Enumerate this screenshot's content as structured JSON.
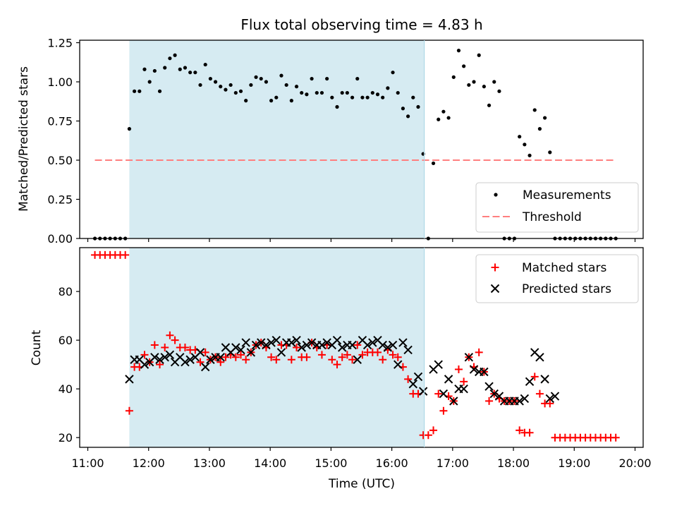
{
  "figure_title": "Flux total observing time = 4.83 h",
  "colors": {
    "observing_window": "#add8e6",
    "measurements": "#000000",
    "threshold": "#ff7f7f",
    "matched": "#ff0000",
    "predicted": "#000000"
  },
  "chart_data": [
    {
      "type": "scatter",
      "panel": "top",
      "title": "Flux total observing time = 4.83 h",
      "ylabel": "Matched/Predicted stars",
      "xlabel": "",
      "xlim": [
        "11:00",
        "20:00"
      ],
      "ylim": [
        0,
        1.25
      ],
      "yticks": [
        "0.00",
        "0.25",
        "0.50",
        "0.75",
        "1.00",
        "1.25"
      ],
      "legend_position": "lower-right",
      "shaded_span": {
        "start": "11:41",
        "end": "16:32"
      },
      "series": [
        {
          "name": "Measurements",
          "style": "dot",
          "x": [
            "11:07",
            "11:12",
            "11:17",
            "11:22",
            "11:27",
            "11:32",
            "11:37",
            "11:41",
            "11:46",
            "11:51",
            "11:56",
            "12:01",
            "12:06",
            "12:11",
            "12:16",
            "12:21",
            "12:26",
            "12:31",
            "12:36",
            "12:41",
            "12:46",
            "12:51",
            "12:56",
            "13:01",
            "13:06",
            "13:11",
            "13:16",
            "13:21",
            "13:26",
            "13:31",
            "13:36",
            "13:41",
            "13:46",
            "13:51",
            "13:56",
            "14:01",
            "14:06",
            "14:11",
            "14:16",
            "14:21",
            "14:26",
            "14:31",
            "14:36",
            "14:41",
            "14:46",
            "14:51",
            "14:56",
            "15:01",
            "15:06",
            "15:11",
            "15:16",
            "15:21",
            "15:26",
            "15:31",
            "15:36",
            "15:41",
            "15:46",
            "15:51",
            "15:56",
            "16:01",
            "16:06",
            "16:11",
            "16:16",
            "16:21",
            "16:26",
            "16:31",
            "16:36",
            "16:41",
            "16:46",
            "16:51",
            "16:56",
            "17:01",
            "17:06",
            "17:11",
            "17:16",
            "17:21",
            "17:26",
            "17:31",
            "17:36",
            "17:41",
            "17:46",
            "17:51",
            "17:56",
            "18:01",
            "18:06",
            "18:11",
            "18:16",
            "18:21",
            "18:26",
            "18:31",
            "18:36",
            "18:41",
            "18:46",
            "18:51",
            "18:56",
            "19:01",
            "19:06",
            "19:11",
            "19:16",
            "19:21",
            "19:26",
            "19:31",
            "19:36",
            "19:41"
          ],
          "y": [
            0,
            0,
            0,
            0,
            0,
            0,
            0,
            0.7,
            0.94,
            0.94,
            1.08,
            1.0,
            1.07,
            0.94,
            1.09,
            1.15,
            1.17,
            1.08,
            1.09,
            1.06,
            1.06,
            0.98,
            1.11,
            1.02,
            1.0,
            0.97,
            0.95,
            0.98,
            0.93,
            0.94,
            0.88,
            0.98,
            1.03,
            1.02,
            1.0,
            0.88,
            0.9,
            1.04,
            0.98,
            0.88,
            0.97,
            0.93,
            0.92,
            1.02,
            0.93,
            0.93,
            1.02,
            0.9,
            0.84,
            0.93,
            0.93,
            0.9,
            1.02,
            0.9,
            0.9,
            0.93,
            0.92,
            0.9,
            0.96,
            1.06,
            0.93,
            0.83,
            0.78,
            0.9,
            0.84,
            0.54,
            0.0,
            0.48,
            0.76,
            0.81,
            0.77,
            1.03,
            1.2,
            1.1,
            0.98,
            1.0,
            1.17,
            0.97,
            0.85,
            1.0,
            0.94,
            0,
            0,
            0,
            0.65,
            0.6,
            0.53,
            0.82,
            0.7,
            0.77,
            0.55,
            0,
            0,
            0,
            0,
            0,
            0,
            0,
            0,
            0,
            0,
            0,
            0,
            0
          ]
        },
        {
          "name": "Threshold",
          "style": "dashed-line",
          "x": [
            "11:07",
            "19:41"
          ],
          "y": [
            0.5,
            0.5
          ]
        }
      ]
    },
    {
      "type": "scatter",
      "panel": "bottom",
      "xlabel": "Time (UTC)",
      "ylabel": "Count",
      "xlim": [
        "11:00",
        "20:00"
      ],
      "ylim": [
        16,
        98
      ],
      "xticks": [
        "11:00",
        "12:00",
        "13:00",
        "14:00",
        "15:00",
        "16:00",
        "17:00",
        "18:00",
        "19:00",
        "20:00"
      ],
      "yticks": [
        "20",
        "40",
        "60",
        "80"
      ],
      "legend_position": "upper-right",
      "shaded_span": {
        "start": "11:41",
        "end": "16:32"
      },
      "series": [
        {
          "name": "Matched stars",
          "marker": "plus",
          "x": [
            "11:07",
            "11:12",
            "11:17",
            "11:22",
            "11:27",
            "11:32",
            "11:37",
            "11:41",
            "11:46",
            "11:51",
            "11:56",
            "12:01",
            "12:06",
            "12:11",
            "12:16",
            "12:21",
            "12:26",
            "12:31",
            "12:36",
            "12:41",
            "12:46",
            "12:51",
            "12:56",
            "13:01",
            "13:06",
            "13:11",
            "13:16",
            "13:21",
            "13:26",
            "13:31",
            "13:36",
            "13:41",
            "13:46",
            "13:51",
            "13:56",
            "14:01",
            "14:06",
            "14:11",
            "14:16",
            "14:21",
            "14:26",
            "14:31",
            "14:36",
            "14:41",
            "14:46",
            "14:51",
            "14:56",
            "15:01",
            "15:06",
            "15:11",
            "15:16",
            "15:21",
            "15:26",
            "15:31",
            "15:36",
            "15:41",
            "15:46",
            "15:51",
            "15:56",
            "16:01",
            "16:06",
            "16:11",
            "16:16",
            "16:21",
            "16:26",
            "16:31",
            "16:36",
            "16:41",
            "16:46",
            "16:51",
            "16:56",
            "17:01",
            "17:06",
            "17:11",
            "17:16",
            "17:21",
            "17:26",
            "17:31",
            "17:36",
            "17:41",
            "17:46",
            "17:51",
            "17:56",
            "18:01",
            "18:06",
            "18:11",
            "18:16",
            "18:21",
            "18:26",
            "18:31",
            "18:36",
            "18:41",
            "18:46",
            "18:51",
            "18:56",
            "19:01",
            "19:06",
            "19:11",
            "19:16",
            "19:21",
            "19:26",
            "19:31",
            "19:36",
            "19:41"
          ],
          "y": [
            95,
            95,
            95,
            95,
            95,
            95,
            95,
            31,
            49,
            49,
            54,
            51,
            58,
            50,
            57,
            62,
            60,
            57,
            57,
            56,
            56,
            51,
            55,
            52,
            53,
            51,
            53,
            54,
            53,
            54,
            52,
            55,
            58,
            59,
            57,
            53,
            52,
            58,
            58,
            52,
            57,
            53,
            53,
            59,
            57,
            54,
            58,
            52,
            50,
            53,
            54,
            52,
            58,
            54,
            55,
            55,
            55,
            52,
            56,
            54,
            53,
            49,
            44,
            38,
            38,
            21,
            21,
            23,
            38,
            31,
            37,
            35,
            48,
            43,
            53,
            49,
            55,
            47,
            35,
            38,
            36,
            35,
            35,
            35,
            23,
            22,
            22,
            45,
            38,
            34,
            34,
            20,
            20,
            20,
            20,
            20,
            20,
            20,
            20,
            20,
            20,
            20,
            20,
            20
          ]
        },
        {
          "name": "Predicted stars",
          "marker": "x",
          "x": [
            "11:41",
            "11:46",
            "11:51",
            "11:56",
            "12:01",
            "12:06",
            "12:11",
            "12:16",
            "12:21",
            "12:26",
            "12:31",
            "12:36",
            "12:41",
            "12:46",
            "12:51",
            "12:56",
            "13:01",
            "13:06",
            "13:11",
            "13:16",
            "13:21",
            "13:26",
            "13:31",
            "13:36",
            "13:41",
            "13:46",
            "13:51",
            "13:56",
            "14:01",
            "14:06",
            "14:11",
            "14:16",
            "14:21",
            "14:26",
            "14:31",
            "14:36",
            "14:41",
            "14:46",
            "14:51",
            "14:56",
            "15:01",
            "15:06",
            "15:11",
            "15:16",
            "15:21",
            "15:26",
            "15:31",
            "15:36",
            "15:41",
            "15:46",
            "15:51",
            "15:56",
            "16:01",
            "16:06",
            "16:11",
            "16:16",
            "16:21",
            "16:26",
            "16:31",
            "16:41",
            "16:46",
            "16:51",
            "16:56",
            "17:01",
            "17:06",
            "17:11",
            "17:16",
            "17:21",
            "17:26",
            "17:31",
            "17:36",
            "17:41",
            "17:46",
            "17:51",
            "17:56",
            "18:01",
            "18:06",
            "18:11",
            "18:16",
            "18:21",
            "18:26",
            "18:31",
            "18:36",
            "18:41"
          ],
          "y": [
            44,
            52,
            52,
            50,
            51,
            53,
            52,
            53,
            54,
            51,
            53,
            51,
            52,
            53,
            55,
            49,
            52,
            53,
            53,
            57,
            55,
            57,
            56,
            59,
            55,
            58,
            59,
            58,
            59,
            60,
            55,
            59,
            59,
            60,
            57,
            58,
            59,
            58,
            58,
            59,
            58,
            60,
            57,
            58,
            58,
            52,
            60,
            58,
            59,
            60,
            58,
            57,
            58,
            50,
            59,
            56,
            42,
            45,
            39,
            48,
            50,
            38,
            44,
            35,
            40,
            40,
            53,
            48,
            47,
            47,
            41,
            38,
            37,
            35,
            35,
            35,
            35,
            36,
            43,
            55,
            53,
            44,
            36,
            37
          ]
        }
      ]
    }
  ]
}
